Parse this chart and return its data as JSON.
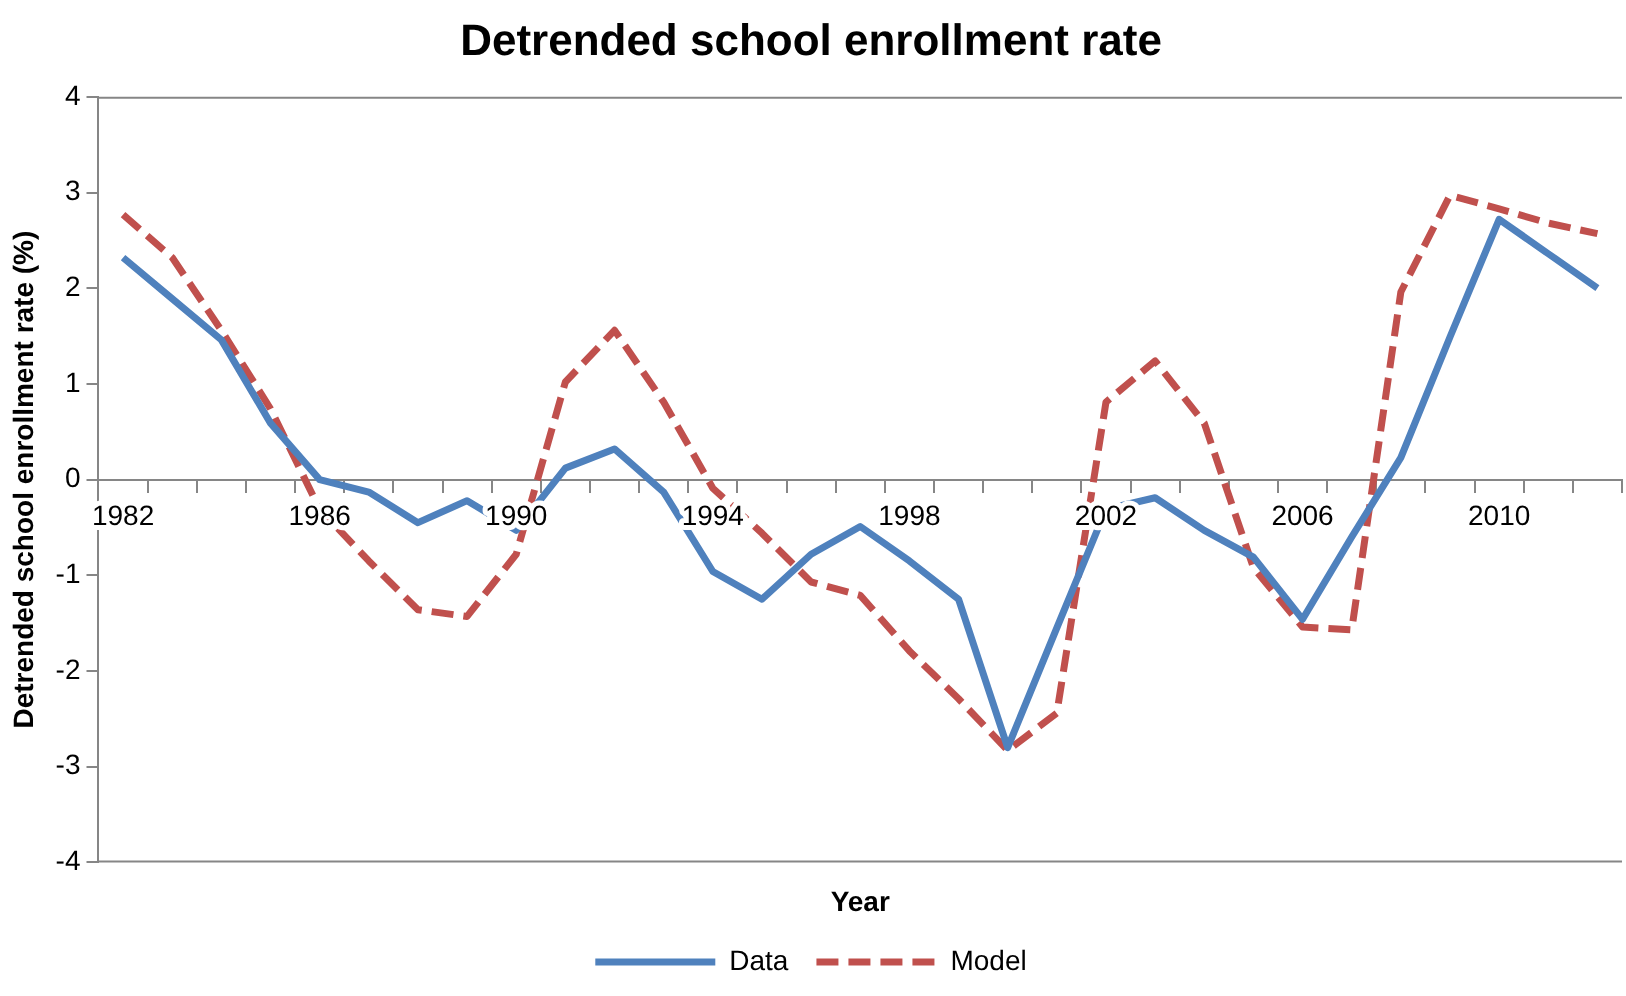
{
  "chart_data": {
    "type": "line",
    "title": "Detrended school enrollment rate",
    "xlabel": "Year",
    "ylabel": "Detrended school enrollment rate (%)",
    "categories": [
      "1982",
      null,
      null,
      null,
      "1986",
      null,
      null,
      null,
      "1990",
      null,
      null,
      null,
      "1994",
      null,
      null,
      null,
      "1998",
      null,
      null,
      null,
      "2002",
      null,
      null,
      null,
      "2006",
      null,
      null,
      null,
      "2010",
      null,
      null
    ],
    "series": [
      {
        "name": "Data",
        "color": "#4f81bd",
        "line_style": "solid",
        "values": [
          2.32,
          1.89,
          1.46,
          0.59,
          0.0,
          -0.13,
          -0.45,
          -0.22,
          -0.53,
          0.12,
          0.32,
          -0.13,
          -0.96,
          -1.25,
          -0.78,
          -0.49,
          -0.85,
          -1.25,
          -2.8,
          -1.55,
          -0.31,
          -0.19,
          -0.53,
          -0.81,
          -1.46,
          -0.6,
          0.23,
          1.49,
          2.72,
          2.36,
          2.0
        ]
      },
      {
        "name": "Model",
        "color": "#c0504d",
        "line_style": "dashed",
        "values": [
          2.77,
          2.32,
          1.56,
          0.74,
          -0.31,
          -0.85,
          -1.36,
          -1.43,
          -0.78,
          1.02,
          1.56,
          0.81,
          -0.09,
          -0.56,
          -1.07,
          -1.21,
          -1.79,
          -2.29,
          -2.83,
          -2.44,
          0.81,
          1.24,
          0.59,
          -0.92,
          -1.54,
          -1.57,
          1.96,
          2.97,
          2.83,
          2.68,
          2.57
        ]
      }
    ],
    "ylim": [
      -4,
      4
    ],
    "yticks": [
      -4,
      -3,
      -2,
      -1,
      0,
      1,
      2,
      3,
      4
    ],
    "grid": false,
    "legend": "bottom",
    "marker": "none"
  }
}
